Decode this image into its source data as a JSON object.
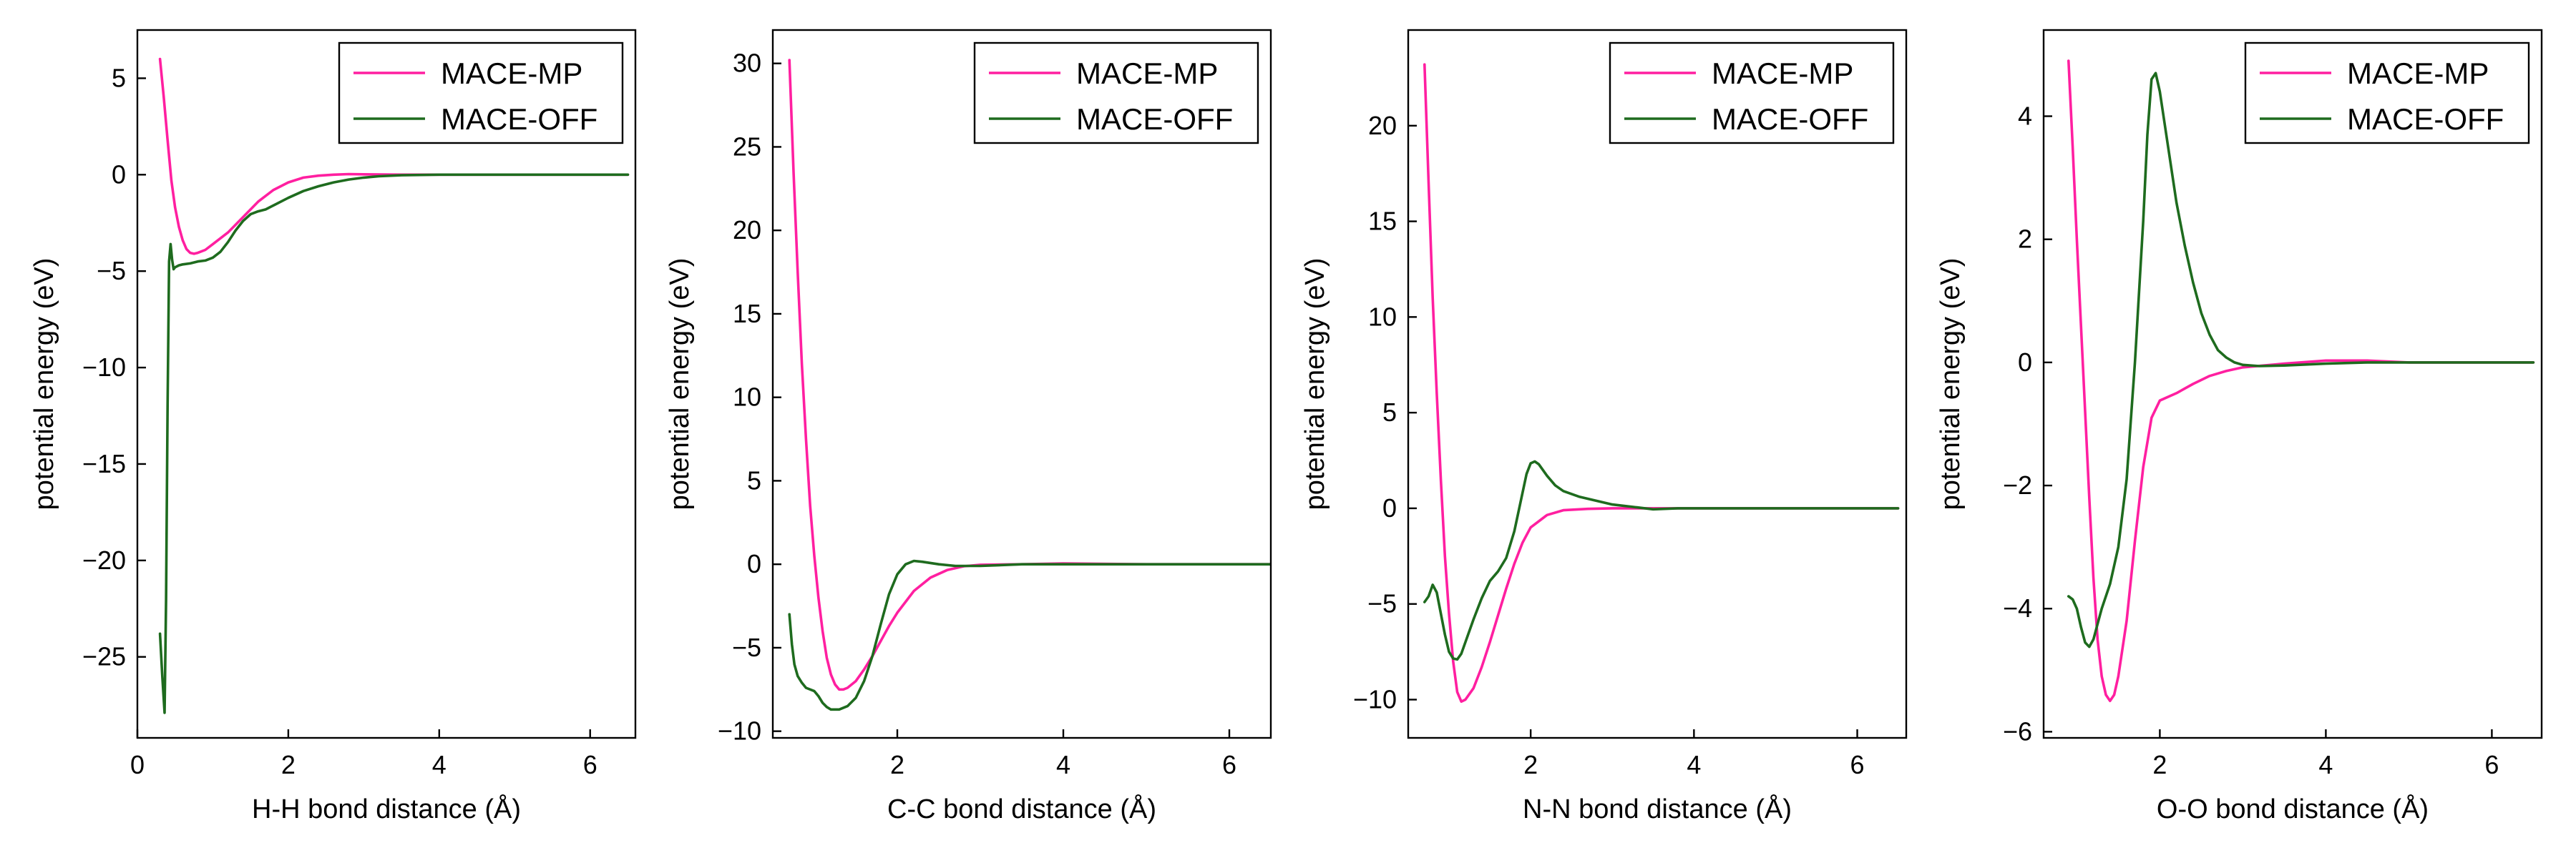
{
  "colors": {
    "MACE-MP": "#ff1fa0",
    "MACE-OFF": "#1e6b1e"
  },
  "chart_data": [
    {
      "type": "line",
      "xlabel": "H-H bond distance (Å)",
      "ylabel": "potential energy (eV)",
      "xlim": [
        0,
        6.6
      ],
      "ylim": [
        -29.2,
        7.5
      ],
      "xticks": [
        0,
        2,
        4,
        6
      ],
      "yticks": [
        5,
        0,
        -5,
        -10,
        -15,
        -20,
        -25
      ],
      "xtick_labels": [
        "0",
        "2",
        "4",
        "6"
      ],
      "ytick_labels": [
        "5",
        "0",
        "−5",
        "−10",
        "−15",
        "−20",
        "−25"
      ],
      "legend_position": "top-right",
      "series": [
        {
          "name": "MACE-MP",
          "points": [
            [
              0.3,
              6.0
            ],
            [
              0.35,
              4.0
            ],
            [
              0.4,
              1.8
            ],
            [
              0.45,
              -0.3
            ],
            [
              0.5,
              -1.7
            ],
            [
              0.55,
              -2.7
            ],
            [
              0.6,
              -3.4
            ],
            [
              0.65,
              -3.85
            ],
            [
              0.7,
              -4.05
            ],
            [
              0.75,
              -4.1
            ],
            [
              0.8,
              -4.05
            ],
            [
              0.9,
              -3.9
            ],
            [
              1.0,
              -3.6
            ],
            [
              1.2,
              -3.0
            ],
            [
              1.4,
              -2.2
            ],
            [
              1.6,
              -1.4
            ],
            [
              1.8,
              -0.8
            ],
            [
              2.0,
              -0.4
            ],
            [
              2.2,
              -0.15
            ],
            [
              2.4,
              -0.05
            ],
            [
              2.6,
              0.0
            ],
            [
              2.8,
              0.03
            ],
            [
              3.0,
              0.02
            ],
            [
              3.5,
              0.0
            ],
            [
              4.0,
              0.0
            ],
            [
              5.0,
              0.0
            ],
            [
              6.5,
              0.0
            ]
          ]
        },
        {
          "name": "MACE-OFF",
          "points": [
            [
              0.3,
              -23.8
            ],
            [
              0.33,
              -26.0
            ],
            [
              0.36,
              -27.9
            ],
            [
              0.38,
              -22.0
            ],
            [
              0.4,
              -12.0
            ],
            [
              0.42,
              -4.5
            ],
            [
              0.44,
              -3.6
            ],
            [
              0.46,
              -4.4
            ],
            [
              0.48,
              -4.9
            ],
            [
              0.5,
              -4.8
            ],
            [
              0.55,
              -4.7
            ],
            [
              0.6,
              -4.65
            ],
            [
              0.7,
              -4.6
            ],
            [
              0.8,
              -4.5
            ],
            [
              0.9,
              -4.45
            ],
            [
              1.0,
              -4.3
            ],
            [
              1.1,
              -4.0
            ],
            [
              1.2,
              -3.5
            ],
            [
              1.3,
              -2.9
            ],
            [
              1.4,
              -2.4
            ],
            [
              1.5,
              -2.05
            ],
            [
              1.6,
              -1.9
            ],
            [
              1.7,
              -1.8
            ],
            [
              1.8,
              -1.6
            ],
            [
              2.0,
              -1.2
            ],
            [
              2.2,
              -0.85
            ],
            [
              2.4,
              -0.6
            ],
            [
              2.6,
              -0.4
            ],
            [
              2.8,
              -0.25
            ],
            [
              3.0,
              -0.15
            ],
            [
              3.2,
              -0.08
            ],
            [
              3.5,
              -0.03
            ],
            [
              4.0,
              0.0
            ],
            [
              5.0,
              0.0
            ],
            [
              6.5,
              0.0
            ]
          ]
        }
      ]
    },
    {
      "type": "line",
      "xlabel": "C-C bond distance (Å)",
      "ylabel": "potential energy (eV)",
      "xlim": [
        0.5,
        6.5
      ],
      "ylim": [
        -10.4,
        32
      ],
      "xticks": [
        2,
        4,
        6
      ],
      "yticks": [
        30,
        25,
        20,
        15,
        10,
        5,
        0,
        -5,
        -10
      ],
      "xtick_labels": [
        "2",
        "4",
        "6"
      ],
      "ytick_labels": [
        "30",
        "25",
        "20",
        "15",
        "10",
        "5",
        "0",
        "−5",
        "−10"
      ],
      "legend_position": "top-right",
      "series": [
        {
          "name": "MACE-MP",
          "points": [
            [
              0.7,
              30.2
            ],
            [
              0.75,
              23.5
            ],
            [
              0.8,
              17.5
            ],
            [
              0.85,
              12.0
            ],
            [
              0.9,
              7.5
            ],
            [
              0.95,
              3.5
            ],
            [
              1.0,
              0.5
            ],
            [
              1.05,
              -2.0
            ],
            [
              1.1,
              -4.0
            ],
            [
              1.15,
              -5.6
            ],
            [
              1.2,
              -6.6
            ],
            [
              1.25,
              -7.2
            ],
            [
              1.3,
              -7.5
            ],
            [
              1.35,
              -7.5
            ],
            [
              1.4,
              -7.4
            ],
            [
              1.5,
              -7.0
            ],
            [
              1.6,
              -6.3
            ],
            [
              1.7,
              -5.5
            ],
            [
              1.8,
              -4.6
            ],
            [
              1.9,
              -3.7
            ],
            [
              2.0,
              -2.9
            ],
            [
              2.2,
              -1.6
            ],
            [
              2.4,
              -0.8
            ],
            [
              2.6,
              -0.35
            ],
            [
              2.8,
              -0.12
            ],
            [
              3.0,
              -0.03
            ],
            [
              3.5,
              0.0
            ],
            [
              4.0,
              0.05
            ],
            [
              5.0,
              0.0
            ],
            [
              6.5,
              0.0
            ]
          ]
        },
        {
          "name": "MACE-OFF",
          "points": [
            [
              0.7,
              -3.0
            ],
            [
              0.73,
              -4.8
            ],
            [
              0.76,
              -6.0
            ],
            [
              0.8,
              -6.7
            ],
            [
              0.85,
              -7.1
            ],
            [
              0.9,
              -7.4
            ],
            [
              1.0,
              -7.6
            ],
            [
              1.05,
              -7.9
            ],
            [
              1.1,
              -8.3
            ],
            [
              1.15,
              -8.55
            ],
            [
              1.2,
              -8.7
            ],
            [
              1.3,
              -8.7
            ],
            [
              1.4,
              -8.5
            ],
            [
              1.5,
              -8.0
            ],
            [
              1.6,
              -7.0
            ],
            [
              1.7,
              -5.5
            ],
            [
              1.8,
              -3.6
            ],
            [
              1.9,
              -1.8
            ],
            [
              2.0,
              -0.6
            ],
            [
              2.1,
              0.0
            ],
            [
              2.2,
              0.2
            ],
            [
              2.3,
              0.15
            ],
            [
              2.5,
              0.0
            ],
            [
              2.7,
              -0.1
            ],
            [
              3.0,
              -0.1
            ],
            [
              3.5,
              0.0
            ],
            [
              4.0,
              0.0
            ],
            [
              5.0,
              0.0
            ],
            [
              6.5,
              0.0
            ]
          ]
        }
      ]
    },
    {
      "type": "line",
      "xlabel": "N-N bond distance (Å)",
      "ylabel": "potential energy (eV)",
      "xlim": [
        0.5,
        6.6
      ],
      "ylim": [
        -12,
        25
      ],
      "xticks": [
        2,
        4,
        6
      ],
      "yticks": [
        20,
        15,
        10,
        5,
        0,
        -5,
        -10
      ],
      "xtick_labels": [
        "2",
        "4",
        "6"
      ],
      "ytick_labels": [
        "20",
        "15",
        "10",
        "5",
        "0",
        "−5",
        "−10"
      ],
      "legend_position": "top-right",
      "series": [
        {
          "name": "MACE-MP",
          "points": [
            [
              0.7,
              23.2
            ],
            [
              0.75,
              17.0
            ],
            [
              0.8,
              11.0
            ],
            [
              0.85,
              6.0
            ],
            [
              0.9,
              1.5
            ],
            [
              0.95,
              -2.5
            ],
            [
              1.0,
              -5.5
            ],
            [
              1.05,
              -8.0
            ],
            [
              1.1,
              -9.6
            ],
            [
              1.15,
              -10.1
            ],
            [
              1.2,
              -10.0
            ],
            [
              1.3,
              -9.4
            ],
            [
              1.4,
              -8.3
            ],
            [
              1.5,
              -7.0
            ],
            [
              1.6,
              -5.6
            ],
            [
              1.7,
              -4.2
            ],
            [
              1.8,
              -2.9
            ],
            [
              1.9,
              -1.8
            ],
            [
              2.0,
              -1.0
            ],
            [
              2.2,
              -0.35
            ],
            [
              2.4,
              -0.1
            ],
            [
              2.7,
              -0.03
            ],
            [
              3.0,
              0.0
            ],
            [
              4.0,
              0.0
            ],
            [
              5.0,
              0.0
            ],
            [
              6.5,
              0.0
            ]
          ]
        },
        {
          "name": "MACE-OFF",
          "points": [
            [
              0.7,
              -4.9
            ],
            [
              0.75,
              -4.6
            ],
            [
              0.8,
              -4.0
            ],
            [
              0.85,
              -4.4
            ],
            [
              0.9,
              -5.5
            ],
            [
              0.95,
              -6.6
            ],
            [
              1.0,
              -7.5
            ],
            [
              1.05,
              -7.85
            ],
            [
              1.1,
              -7.9
            ],
            [
              1.15,
              -7.6
            ],
            [
              1.2,
              -7.0
            ],
            [
              1.3,
              -5.8
            ],
            [
              1.4,
              -4.7
            ],
            [
              1.5,
              -3.8
            ],
            [
              1.6,
              -3.3
            ],
            [
              1.7,
              -2.6
            ],
            [
              1.8,
              -1.2
            ],
            [
              1.9,
              0.8
            ],
            [
              1.95,
              1.8
            ],
            [
              2.0,
              2.35
            ],
            [
              2.05,
              2.45
            ],
            [
              2.1,
              2.3
            ],
            [
              2.2,
              1.7
            ],
            [
              2.3,
              1.2
            ],
            [
              2.4,
              0.9
            ],
            [
              2.6,
              0.6
            ],
            [
              2.8,
              0.4
            ],
            [
              3.0,
              0.2
            ],
            [
              3.3,
              0.05
            ],
            [
              3.5,
              -0.05
            ],
            [
              3.8,
              0.0
            ],
            [
              4.0,
              0.0
            ],
            [
              5.0,
              0.0
            ],
            [
              6.5,
              0.0
            ]
          ]
        }
      ]
    },
    {
      "type": "line",
      "xlabel": "O-O bond distance (Å)",
      "ylabel": "potential energy (eV)",
      "xlim": [
        0.6,
        6.6
      ],
      "ylim": [
        -6.1,
        5.4
      ],
      "xticks": [
        2,
        4,
        6
      ],
      "yticks": [
        4,
        2,
        0,
        -2,
        -4,
        -6
      ],
      "xtick_labels": [
        "2",
        "4",
        "6"
      ],
      "ytick_labels": [
        "4",
        "2",
        "0",
        "−2",
        "−4",
        "−6"
      ],
      "legend_position": "top-right",
      "series": [
        {
          "name": "MACE-MP",
          "points": [
            [
              0.9,
              4.9
            ],
            [
              0.95,
              3.5
            ],
            [
              1.0,
              2.0
            ],
            [
              1.05,
              0.6
            ],
            [
              1.1,
              -0.8
            ],
            [
              1.15,
              -2.2
            ],
            [
              1.2,
              -3.5
            ],
            [
              1.25,
              -4.5
            ],
            [
              1.3,
              -5.1
            ],
            [
              1.35,
              -5.4
            ],
            [
              1.4,
              -5.5
            ],
            [
              1.45,
              -5.4
            ],
            [
              1.5,
              -5.1
            ],
            [
              1.6,
              -4.2
            ],
            [
              1.7,
              -2.9
            ],
            [
              1.8,
              -1.7
            ],
            [
              1.9,
              -0.9
            ],
            [
              2.0,
              -0.62
            ],
            [
              2.2,
              -0.5
            ],
            [
              2.4,
              -0.35
            ],
            [
              2.6,
              -0.22
            ],
            [
              2.8,
              -0.14
            ],
            [
              3.0,
              -0.08
            ],
            [
              3.5,
              -0.02
            ],
            [
              4.0,
              0.03
            ],
            [
              4.5,
              0.03
            ],
            [
              5.0,
              0.0
            ],
            [
              6.5,
              0.0
            ]
          ]
        },
        {
          "name": "MACE-OFF",
          "points": [
            [
              0.9,
              -3.8
            ],
            [
              0.95,
              -3.85
            ],
            [
              1.0,
              -4.0
            ],
            [
              1.05,
              -4.3
            ],
            [
              1.1,
              -4.55
            ],
            [
              1.15,
              -4.62
            ],
            [
              1.2,
              -4.5
            ],
            [
              1.25,
              -4.25
            ],
            [
              1.3,
              -4.0
            ],
            [
              1.4,
              -3.6
            ],
            [
              1.5,
              -3.0
            ],
            [
              1.6,
              -1.9
            ],
            [
              1.7,
              0.0
            ],
            [
              1.8,
              2.3
            ],
            [
              1.85,
              3.7
            ],
            [
              1.9,
              4.6
            ],
            [
              1.95,
              4.7
            ],
            [
              2.0,
              4.4
            ],
            [
              2.1,
              3.5
            ],
            [
              2.2,
              2.6
            ],
            [
              2.3,
              1.9
            ],
            [
              2.4,
              1.3
            ],
            [
              2.5,
              0.8
            ],
            [
              2.6,
              0.45
            ],
            [
              2.7,
              0.2
            ],
            [
              2.8,
              0.08
            ],
            [
              2.9,
              0.0
            ],
            [
              3.0,
              -0.04
            ],
            [
              3.2,
              -0.06
            ],
            [
              3.5,
              -0.05
            ],
            [
              4.0,
              -0.02
            ],
            [
              4.5,
              0.0
            ],
            [
              5.0,
              0.0
            ],
            [
              6.5,
              0.0
            ]
          ]
        }
      ]
    }
  ]
}
